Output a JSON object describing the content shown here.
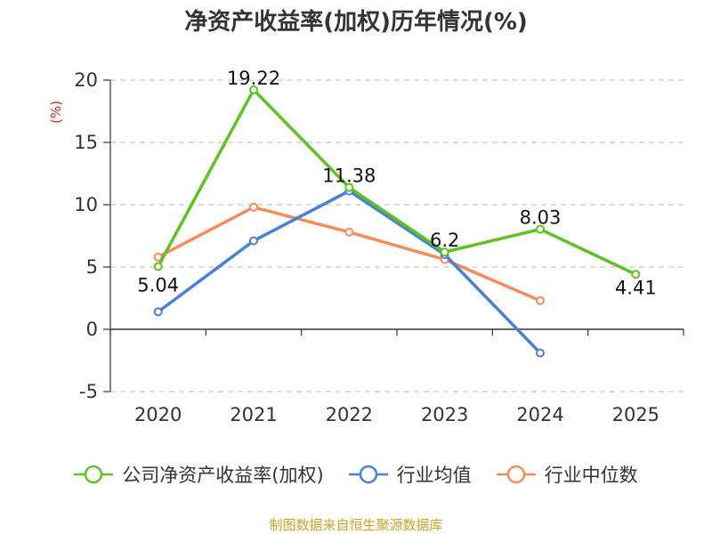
{
  "chart_data": {
    "type": "line",
    "title": "净资产收益率(加权)历年情况(%)",
    "ylabel": "(%)",
    "categories": [
      "2020",
      "2021",
      "2022",
      "2023",
      "2024",
      "2025"
    ],
    "ylim": [
      -5,
      20
    ],
    "yticks": [
      "-5",
      "0",
      "5",
      "10",
      "15",
      "20"
    ],
    "grid": true,
    "legend_position": "bottom",
    "series": [
      {
        "name": "公司净资产收益率(加权)",
        "color": "#5cc323",
        "values": [
          5.04,
          19.22,
          11.38,
          6.2,
          8.03,
          4.41
        ],
        "labels": [
          "5.04",
          "19.22",
          "11.38",
          "6.2",
          "8.03",
          "4.41"
        ]
      },
      {
        "name": "行业均值",
        "color": "#4a7fd8",
        "values": [
          1.4,
          7.1,
          11.1,
          6.0,
          -1.9,
          null
        ]
      },
      {
        "name": "行业中位数",
        "color": "#f78c5a",
        "values": [
          5.8,
          9.8,
          7.8,
          5.6,
          2.3,
          null
        ]
      }
    ]
  },
  "source": "制图数据来自恒生聚源数据库"
}
